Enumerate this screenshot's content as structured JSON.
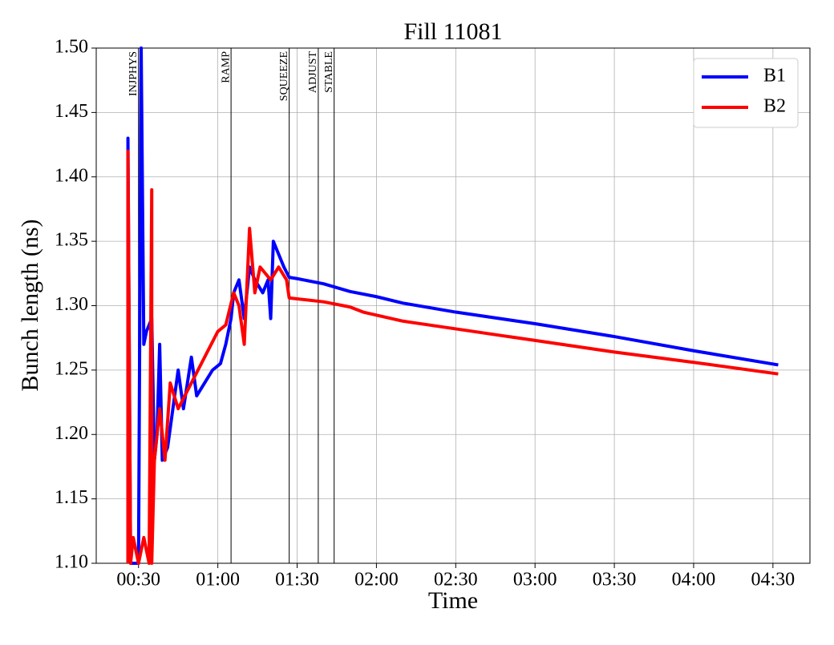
{
  "chart_data": {
    "type": "line",
    "title": "Fill 11081",
    "xlabel": "Time",
    "ylabel": "Bunch length (ns)",
    "xlim": [
      "00:14",
      "04:44"
    ],
    "xticks": [
      "00:30",
      "01:00",
      "01:30",
      "02:00",
      "02:30",
      "03:00",
      "03:30",
      "04:00",
      "04:30"
    ],
    "ylim": [
      1.1,
      1.5
    ],
    "yticks": [
      {
        "value": 1.1,
        "label": "1.10"
      },
      1.15,
      {
        "value": 1.2,
        "label": "1.20"
      },
      1.25,
      {
        "value": 1.3,
        "label": "1.30"
      },
      1.35,
      {
        "value": 1.4,
        "label": "1.40"
      },
      1.45,
      {
        "value": 1.5,
        "label": "1.50"
      }
    ],
    "grid": true,
    "legend": "upper right",
    "phases": [
      {
        "label": "INJPHYS",
        "x": "00:30"
      },
      {
        "label": "RAMP",
        "x": "01:05"
      },
      {
        "label": "SQUEEZE",
        "x": "01:27"
      },
      {
        "label": "ADJUST",
        "x": "01:38"
      },
      {
        "label": "STABLE",
        "x": "01:44"
      }
    ],
    "series": [
      {
        "name": "B1",
        "color": "#0000ff",
        "x": [
          "00:26",
          "00:26",
          "00:27",
          "00:30",
          "00:31",
          "00:32",
          "00:33",
          "00:35",
          "00:36",
          "00:37",
          "00:38",
          "00:39",
          "00:41",
          "00:43",
          "00:45",
          "00:47",
          "00:50",
          "00:52",
          "00:55",
          "00:58",
          "01:01",
          "01:03",
          "01:05",
          "01:06",
          "01:08",
          "01:10",
          "01:12",
          "01:14",
          "01:17",
          "01:19",
          "01:20",
          "01:21",
          "01:23",
          "01:25",
          "01:27",
          "01:30",
          "01:40",
          "01:50",
          "02:00",
          "02:10",
          "02:30",
          "03:00",
          "03:30",
          "04:00",
          "04:32"
        ],
        "values": [
          1.1,
          1.43,
          1.1,
          1.1,
          1.5,
          1.27,
          1.28,
          1.29,
          1.18,
          1.2,
          1.27,
          1.18,
          1.19,
          1.22,
          1.25,
          1.22,
          1.26,
          1.23,
          1.24,
          1.25,
          1.255,
          1.27,
          1.29,
          1.31,
          1.32,
          1.29,
          1.33,
          1.32,
          1.31,
          1.32,
          1.29,
          1.35,
          1.34,
          1.33,
          1.322,
          1.321,
          1.317,
          1.311,
          1.307,
          1.302,
          1.295,
          1.286,
          1.276,
          1.265,
          1.254
        ]
      },
      {
        "name": "B2",
        "color": "#ff0000",
        "x": [
          "00:26",
          "00:26",
          "00:27",
          "00:28",
          "00:30",
          "00:32",
          "00:34",
          "00:35",
          "00:35",
          "00:36",
          "00:38",
          "00:40",
          "00:42",
          "00:45",
          "00:50",
          "00:55",
          "01:00",
          "01:03",
          "01:06",
          "01:08",
          "01:10",
          "01:12",
          "01:14",
          "01:16",
          "01:20",
          "01:23",
          "01:26",
          "01:27",
          "01:40",
          "01:50",
          "01:55",
          "02:10",
          "02:30",
          "03:00",
          "03:30",
          "04:00",
          "04:32"
        ],
        "values": [
          1.1,
          1.42,
          1.1,
          1.12,
          1.1,
          1.12,
          1.1,
          1.39,
          1.1,
          1.18,
          1.22,
          1.18,
          1.24,
          1.22,
          1.24,
          1.26,
          1.28,
          1.285,
          1.31,
          1.3,
          1.27,
          1.36,
          1.31,
          1.33,
          1.32,
          1.33,
          1.32,
          1.306,
          1.303,
          1.299,
          1.295,
          1.288,
          1.282,
          1.273,
          1.264,
          1.256,
          1.247
        ]
      }
    ]
  }
}
